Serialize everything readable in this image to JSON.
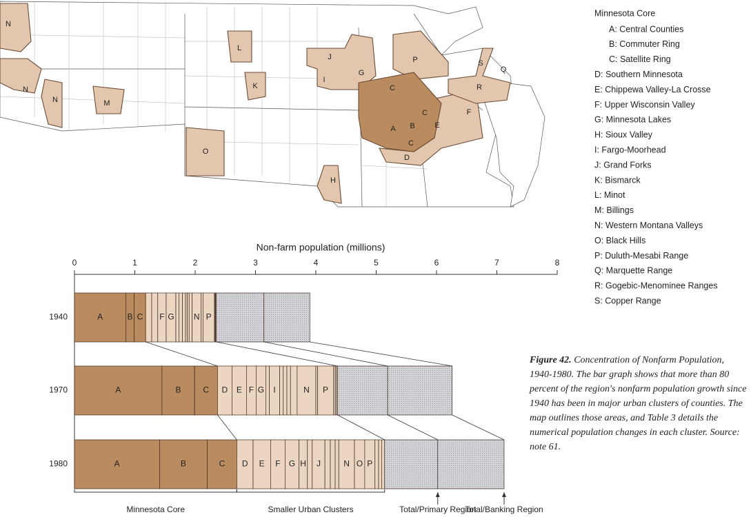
{
  "chart_data": {
    "type": "bar",
    "orientation": "horizontal",
    "stacked": true,
    "xlabel": "Non-farm population (millions)",
    "categories": [
      "1940",
      "1970",
      "1980"
    ],
    "xlim": [
      0,
      8
    ],
    "xticks": [
      0,
      1,
      2,
      3,
      4,
      5,
      6,
      7,
      8
    ],
    "series": [
      {
        "name": "A",
        "color": "#b98b5f",
        "values": [
          0.85,
          1.45,
          1.41
        ]
      },
      {
        "name": "B",
        "color": "#b98b5f",
        "values": [
          0.14,
          0.54,
          0.79
        ]
      },
      {
        "name": "C",
        "color": "#b98b5f",
        "values": [
          0.19,
          0.38,
          0.49
        ]
      },
      {
        "name": "D",
        "color": "#edd6c1",
        "values": [
          0.1,
          0.24,
          0.27
        ]
      },
      {
        "name": "E",
        "color": "#edd6c1",
        "values": [
          0.1,
          0.24,
          0.29
        ]
      },
      {
        "name": "F",
        "color": "#edd6c1",
        "values": [
          0.14,
          0.16,
          0.24
        ]
      },
      {
        "name": "G",
        "color": "#edd6c1",
        "values": [
          0.16,
          0.16,
          0.23
        ]
      },
      {
        "name": "H",
        "color": "#edd6c1",
        "values": [
          0.05,
          0.06,
          0.14
        ]
      },
      {
        "name": "I",
        "color": "#edd6c1",
        "values": [
          0.06,
          0.17,
          0.08
        ]
      },
      {
        "name": "J",
        "color": "#edd6c1",
        "values": [
          0.05,
          0.06,
          0.21
        ]
      },
      {
        "name": "K",
        "color": "#edd6c1",
        "values": [
          0.03,
          0.06,
          0.09
        ]
      },
      {
        "name": "L",
        "color": "#edd6c1",
        "values": [
          0.03,
          0.06,
          0.08
        ]
      },
      {
        "name": "M",
        "color": "#edd6c1",
        "values": [
          0.05,
          0.11,
          0.06
        ]
      },
      {
        "name": "N",
        "color": "#edd6c1",
        "values": [
          0.15,
          0.31,
          0.26
        ]
      },
      {
        "name": "O",
        "color": "#edd6c1",
        "values": [
          0.03,
          0.03,
          0.17
        ]
      },
      {
        "name": "P",
        "color": "#edd6c1",
        "values": [
          0.19,
          0.26,
          0.17
        ]
      },
      {
        "name": "Q",
        "color": "#edd6c1",
        "values": [
          0.01,
          0.03,
          0.06
        ]
      },
      {
        "name": "R",
        "color": "#edd6c1",
        "values": [
          0.01,
          0.02,
          0.05
        ]
      },
      {
        "name": "S",
        "color": "#edd6c1",
        "values": [
          0.01,
          0.02,
          0.05
        ]
      },
      {
        "name": "Total/Primary Region",
        "color": "#c9c8cc",
        "values": [
          0.79,
          0.83,
          0.88
        ]
      },
      {
        "name": "Total/Banking Region",
        "color": "#c9c8cc",
        "values": [
          0.76,
          1.07,
          1.1
        ]
      }
    ],
    "annotations": [
      "Minnesota Core",
      "Smaller Urban Clusters"
    ]
  },
  "legend": {
    "title": "Minnesota Core",
    "items": [
      "A: Central Counties",
      "B: Commuter Ring",
      "C: Satellite Ring",
      "D: Southern Minnesota",
      "E: Chippewa Valley-La Crosse",
      "F: Upper Wisconsin Valley",
      "G: Minnesota Lakes",
      "H: Sioux Valley",
      "I: Fargo-Moorhead",
      "J: Grand Forks",
      "K: Bismarck",
      "L: Minot",
      "M: Billings",
      "N: Western Montana Valleys",
      "O: Black Hills",
      "P: Duluth-Mesabi Range",
      "Q: Marquette Range",
      "R: Gogebic-Menominee Ranges",
      "S: Copper Range"
    ]
  },
  "caption": {
    "label": "Figure 42.",
    "text": "Concentration of Nonfarm Population, 1940-1980. The bar graph shows that more than 80 percent of the region's nonfarm population growth since 1940 has been in major urban clusters of counties. The map outlines those areas, and Table 3 details the numerical population changes in each cluster. Source: note 61."
  },
  "map": {
    "labels": [
      "N",
      "N",
      "N",
      "M",
      "L",
      "K",
      "O",
      "J",
      "I",
      "G",
      "P",
      "C",
      "A",
      "B",
      "C",
      "C",
      "E",
      "F",
      "D",
      "S",
      "Q",
      "R",
      "H"
    ]
  }
}
